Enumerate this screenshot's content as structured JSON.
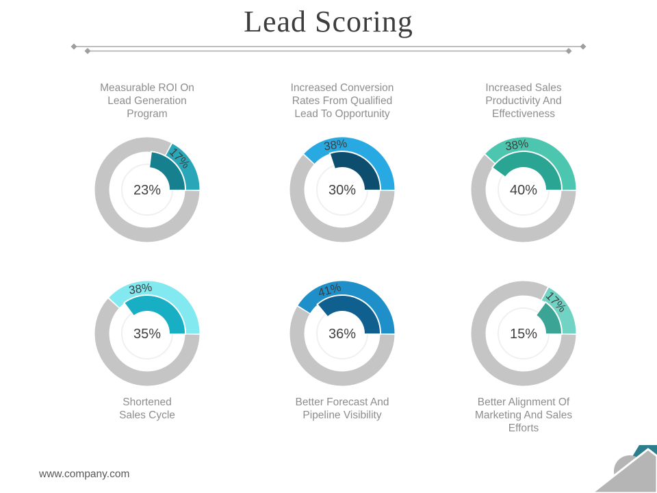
{
  "slide": {
    "title": "Lead Scoring",
    "footer_url": "www.company.com"
  },
  "colors": {
    "background": "#ffffff",
    "title_text": "#3d3d3d",
    "divider_line": "#a8a8a8",
    "diamond": "#9e9e9e",
    "label_text": "#8d8d8d",
    "value_text": "#3f3f3f",
    "ring_gray": "#c5c5c5",
    "faint_inner_circle": "#f0f0f0",
    "footer_text": "#595959",
    "logo_gray": "#b5b5b5",
    "logo_teal": "#2d7e8c"
  },
  "chart_data": [
    {
      "type": "donut",
      "label": "Measurable ROI On\nLead Generation\nProgram",
      "label_position": "top",
      "center_value": "23%",
      "center_percent": 23,
      "arc_value": "17%",
      "arc_percent": 17,
      "outer_color": "#29a7b8",
      "inner_color": "#16808f"
    },
    {
      "type": "donut",
      "label": "Increased Conversion\nRates From Qualified\nLead To Opportunity",
      "label_position": "top",
      "center_value": "30%",
      "center_percent": 30,
      "arc_value": "38%",
      "arc_percent": 38,
      "outer_color": "#29a9e2",
      "inner_color": "#0d4d6e"
    },
    {
      "type": "donut",
      "label": "Increased Sales\nProductivity And\nEffectiveness",
      "label_position": "top",
      "center_value": "40%",
      "center_percent": 40,
      "arc_value": "38%",
      "arc_percent": 38,
      "outer_color": "#4cc6ae",
      "inner_color": "#2ba593"
    },
    {
      "type": "donut",
      "label": "Shortened\nSales Cycle",
      "label_position": "bottom",
      "center_value": "35%",
      "center_percent": 35,
      "arc_value": "38%",
      "arc_percent": 38,
      "outer_color": "#82e9f1",
      "inner_color": "#18aec3"
    },
    {
      "type": "donut",
      "label": "Better Forecast And\nPipeline Visibility",
      "label_position": "bottom",
      "center_value": "36%",
      "center_percent": 36,
      "arc_value": "41%",
      "arc_percent": 41,
      "outer_color": "#1e8fc9",
      "inner_color": "#0f5f8f"
    },
    {
      "type": "donut",
      "label": "Better Alignment Of\nMarketing And Sales\nEfforts",
      "label_position": "bottom",
      "center_value": "15%",
      "center_percent": 15,
      "arc_value": "17%",
      "arc_percent": 17,
      "outer_color": "#70d3c4",
      "inner_color": "#3ba495"
    }
  ]
}
